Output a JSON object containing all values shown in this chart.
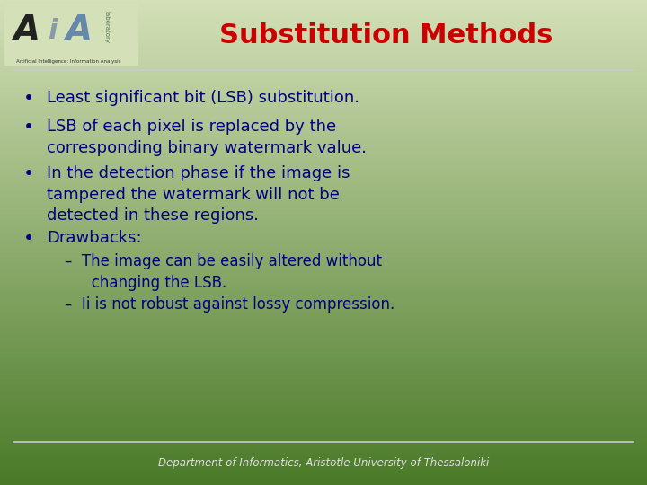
{
  "title": "Substitution Methods",
  "title_color": "#CC0000",
  "title_fontsize": 22,
  "bg_color_top": "#d4e0b8",
  "bg_color_bottom": "#4a7a28",
  "text_color": "#000080",
  "bullet_items": [
    "Least significant bit (LSB) substitution.",
    "LSB of each pixel is replaced by the\ncorresponding binary watermark value.",
    "In the detection phase if the image is\ntampered the watermark will not be\ndetected in these regions.",
    "Drawbacks:"
  ],
  "sub_item1_line1": "–  The image can be easily altered without",
  "sub_item1_line2": "   changing the LSB.",
  "sub_item2": "–  Ii is not robust against lossy compression.",
  "footer": "Department of Informatics, Aristotle University of Thessaloniki",
  "footer_color": "#e0e0e0",
  "line_color": "#aaaaaa",
  "bullet_fontsize": 13,
  "sub_fontsize": 12
}
